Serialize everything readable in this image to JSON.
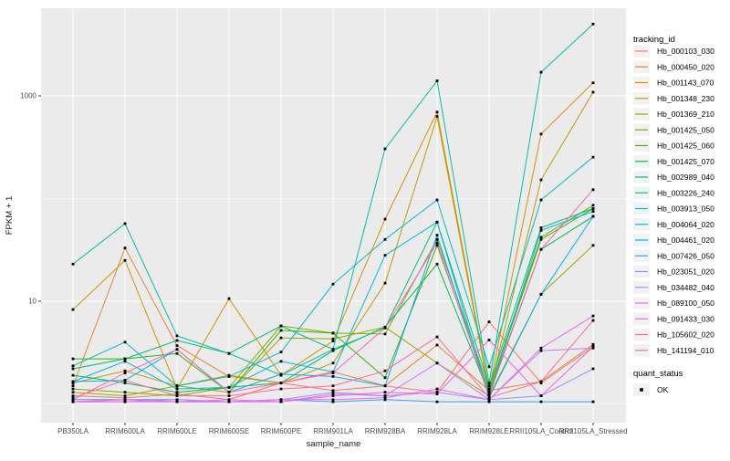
{
  "chart_data": {
    "type": "line",
    "title": "",
    "xlabel": "sample_name",
    "ylabel": "FPKM + 1",
    "y_scale": "log10",
    "ylim": [
      0.78,
      7300
    ],
    "grid": true,
    "panel_bg": "#EBEBEB",
    "grid_color": "#FFFFFF",
    "point_color": "#000000",
    "point_marker": "square",
    "legend_position": "right",
    "legend_title": "tracking_id",
    "y_ticks": [
      {
        "value": 1000,
        "label": "1000"
      },
      {
        "value": 10,
        "label": "10"
      }
    ],
    "y_minor_gridlines": [
      1,
      100
    ],
    "categories": [
      "PB350LA",
      "RRIM600LA",
      "RRIM600LE",
      "RRIM600SE",
      "RRIM600PE",
      "RRIM901LA",
      "RRIM928BA",
      "RRIM928LA",
      "RRIM928LE",
      "RRII105LA_Control",
      "RRII105LA_Stressed"
    ],
    "series": [
      {
        "name": "Hb_000103_030",
        "color": "#F8766D",
        "values": [
          1.2,
          1.15,
          1.25,
          1.1,
          1.6,
          1.35,
          1.5,
          1.3,
          6.3,
          1.6,
          3.6
        ]
      },
      {
        "name": "Hb_000450_020",
        "color": "#EA8331",
        "values": [
          1.5,
          33,
          3.7,
          1.85,
          1.6,
          2.05,
          1.5,
          3.75,
          1.35,
          1.65,
          3.8
        ]
      },
      {
        "name": "Hb_001143_070",
        "color": "#D89000",
        "values": [
          8.3,
          25,
          1.4,
          10.6,
          1.9,
          4.1,
          63,
          695,
          1.4,
          425,
          1340
        ]
      },
      {
        "name": "Hb_001348_230",
        "color": "#C09B00",
        "values": [
          1.6,
          2.1,
          1.5,
          1.9,
          1.6,
          2.5,
          15,
          630,
          1.3,
          152,
          1085
        ]
      },
      {
        "name": "Hb_001369_210",
        "color": "#A3A500",
        "values": [
          1.3,
          1.2,
          1.5,
          1.3,
          4.4,
          4.3,
          5.6,
          2.5,
          1.2,
          11.7,
          35
        ]
      },
      {
        "name": "Hb_001425_050",
        "color": "#7CAE00",
        "values": [
          1.4,
          1.3,
          1.2,
          1.45,
          5.75,
          4.9,
          4.8,
          40,
          1.4,
          42,
          86
        ]
      },
      {
        "name": "Hb_001425_060",
        "color": "#39B600",
        "values": [
          2.75,
          2.75,
          3.1,
          1.3,
          5.2,
          4.9,
          1.8,
          35,
          1.3,
          40,
          80
        ]
      },
      {
        "name": "Hb_001425_070",
        "color": "#00BB4E",
        "values": [
          1.9,
          1.6,
          1.3,
          1.45,
          1.6,
          3.3,
          5.6,
          23,
          1.25,
          32,
          67
        ]
      },
      {
        "name": "Hb_002989_040",
        "color": "#00BF7D",
        "values": [
          2.2,
          2.75,
          4.15,
          3.1,
          5.75,
          3.4,
          5.5,
          59,
          1.5,
          52,
          80
        ]
      },
      {
        "name": "Hb_003226_240",
        "color": "#00C1A3",
        "values": [
          23,
          57,
          4.6,
          3.1,
          1.9,
          3.4,
          305,
          1400,
          1.6,
          1700,
          5000
        ]
      },
      {
        "name": "Hb_003913_050",
        "color": "#00BFC4",
        "values": [
          2.35,
          4.0,
          1.5,
          1.85,
          3.2,
          14.7,
          40,
          97,
          2.3,
          97,
          253
        ]
      },
      {
        "name": "Hb_004064_020",
        "color": "#00BAE0",
        "values": [
          1.65,
          2.6,
          1.4,
          1.45,
          2.6,
          2.05,
          28,
          59,
          1.2,
          49,
          75
        ]
      },
      {
        "name": "Hb_004461_020",
        "color": "#00B0F6",
        "values": [
          1.65,
          1.7,
          3.4,
          1.3,
          1.95,
          1.85,
          1.5,
          44,
          1.15,
          11.7,
          67
        ]
      },
      {
        "name": "Hb_007426_050",
        "color": "#35A2FF",
        "values": [
          1.1,
          1.1,
          1.1,
          1.05,
          1.1,
          1.05,
          1.1,
          1.05,
          1.05,
          1.05,
          1.05
        ]
      },
      {
        "name": "Hb_023051_020",
        "color": "#9590FF",
        "values": [
          1.05,
          1.05,
          1.1,
          1.05,
          1.1,
          1.3,
          1.2,
          1.3,
          1.1,
          1.2,
          2.2
        ]
      },
      {
        "name": "Hb_034482_040",
        "color": "#C77CFF",
        "values": [
          1.05,
          1.1,
          1.05,
          1.1,
          1.05,
          1.25,
          1.2,
          2.5,
          1.1,
          3.3,
          3.5
        ]
      },
      {
        "name": "Hb_089100_050",
        "color": "#E76BF3",
        "values": [
          1.05,
          1.05,
          1.05,
          1.05,
          1.1,
          1.1,
          1.15,
          1.4,
          1.1,
          3.5,
          7.2
        ]
      },
      {
        "name": "Hb_091433_030",
        "color": "#FA62DB",
        "values": [
          1.05,
          1.1,
          1.05,
          1.05,
          1.05,
          1.2,
          1.3,
          1.25,
          4.2,
          1.2,
          3.6
        ]
      },
      {
        "name": "Hb_105602_020",
        "color": "#FF62BC",
        "values": [
          1.1,
          2.0,
          3.4,
          1.3,
          1.6,
          2.0,
          5.5,
          37,
          1.2,
          32,
          122
        ]
      },
      {
        "name": "Hb_141194_010",
        "color": "#FF6A98",
        "values": [
          1.15,
          1.7,
          1.2,
          1.2,
          1.4,
          1.5,
          2.1,
          4.5,
          1.15,
          1.65,
          6.5
        ]
      }
    ],
    "quant_legend": {
      "title": "quant_status",
      "items": [
        {
          "label": "OK",
          "marker": "black-square"
        }
      ]
    }
  }
}
